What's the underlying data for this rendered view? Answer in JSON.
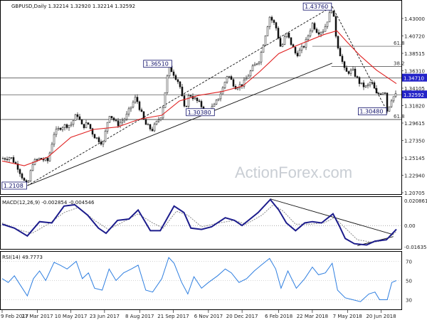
{
  "watermark": "ActionForex.com",
  "price_panel": {
    "title": "GBPUSD,Daily  1.32214 1.32920 1.32214 1.32592"
  },
  "macd_panel": {
    "title": "MACD(12,26,9) -0.002854 -0.004546"
  },
  "rsi_panel": {
    "title": "RSI(14) 49.7773"
  },
  "colors": {
    "ma": "#e02020",
    "macd_main": "#1c1c8c",
    "macd_signal": "#8a8a8a",
    "rsi": "#2f7fe0",
    "callout_fill": "#2323c8",
    "candle": "#111111"
  },
  "chart_data": [
    {
      "type": "candlestick",
      "panel": "price",
      "ylim": [
        1.2,
        1.445
      ],
      "x_start": "2017-02-09",
      "x_end": "2018-07-10",
      "yticks": [
        "1.43000",
        "1.40720",
        "1.38515",
        "1.36310",
        "1.34105",
        "1.31820",
        "1.29615",
        "1.27350",
        "1.25145",
        "1.22940",
        "1.20705"
      ],
      "xticks": [
        {
          "date": "2017-02-09",
          "label": "9 Feb 2017"
        },
        {
          "date": "2017-03-27",
          "label": "27 Mar 2017"
        },
        {
          "date": "2017-05-10",
          "label": "10 May 2017"
        },
        {
          "date": "2017-06-23",
          "label": "23 Jun 2017"
        },
        {
          "date": "2017-08-08",
          "label": "8 Aug 2017"
        },
        {
          "date": "2017-09-21",
          "label": "21 Sep 2017"
        },
        {
          "date": "2017-11-06",
          "label": "6 Nov 2017"
        },
        {
          "date": "2017-12-20",
          "label": "20 Dec 2017"
        },
        {
          "date": "2018-02-06",
          "label": "6 Feb 2018"
        },
        {
          "date": "2018-03-22",
          "label": "22 Mar 2018"
        },
        {
          "date": "2018-05-07",
          "label": "7 May 2018"
        },
        {
          "date": "2018-06-20",
          "label": "20 Jun 2018"
        }
      ],
      "close_path": [
        [
          "2017-02-09",
          1.245
        ],
        [
          "2017-02-20",
          1.247
        ],
        [
          "2017-03-01",
          1.235
        ],
        [
          "2017-03-10",
          1.216
        ],
        [
          "2017-03-14",
          1.21
        ],
        [
          "2017-03-21",
          1.24
        ],
        [
          "2017-03-30",
          1.245
        ],
        [
          "2017-04-10",
          1.242
        ],
        [
          "2017-04-18",
          1.277
        ],
        [
          "2017-04-28",
          1.286
        ],
        [
          "2017-05-10",
          1.288
        ],
        [
          "2017-05-18",
          1.302
        ],
        [
          "2017-05-25",
          1.285
        ],
        [
          "2017-06-01",
          1.29
        ],
        [
          "2017-06-09",
          1.274
        ],
        [
          "2017-06-21",
          1.264
        ],
        [
          "2017-06-29",
          1.302
        ],
        [
          "2017-07-10",
          1.288
        ],
        [
          "2017-07-20",
          1.296
        ],
        [
          "2017-08-03",
          1.323
        ],
        [
          "2017-08-15",
          1.289
        ],
        [
          "2017-08-24",
          1.281
        ],
        [
          "2017-09-06",
          1.301
        ],
        [
          "2017-09-15",
          1.361
        ],
        [
          "2017-09-20",
          1.355
        ],
        [
          "2017-09-29",
          1.34
        ],
        [
          "2017-10-06",
          1.306
        ],
        [
          "2017-10-12",
          1.327
        ],
        [
          "2017-10-24",
          1.316
        ],
        [
          "2017-11-03",
          1.304
        ],
        [
          "2017-11-14",
          1.312
        ],
        [
          "2017-11-24",
          1.332
        ],
        [
          "2017-12-01",
          1.352
        ],
        [
          "2017-12-11",
          1.336
        ],
        [
          "2017-12-21",
          1.339
        ],
        [
          "2018-01-03",
          1.36
        ],
        [
          "2018-01-12",
          1.371
        ],
        [
          "2018-01-25",
          1.425
        ],
        [
          "2018-02-02",
          1.413
        ],
        [
          "2018-02-09",
          1.384
        ],
        [
          "2018-02-16",
          1.404
        ],
        [
          "2018-03-01",
          1.376
        ],
        [
          "2018-03-12",
          1.389
        ],
        [
          "2018-03-22",
          1.416
        ],
        [
          "2018-03-29",
          1.405
        ],
        [
          "2018-04-06",
          1.408
        ],
        [
          "2018-04-17",
          1.437
        ],
        [
          "2018-04-23",
          1.393
        ],
        [
          "2018-05-04",
          1.354
        ],
        [
          "2018-05-14",
          1.356
        ],
        [
          "2018-05-24",
          1.339
        ],
        [
          "2018-06-01",
          1.335
        ],
        [
          "2018-06-07",
          1.343
        ],
        [
          "2018-06-14",
          1.326
        ],
        [
          "2018-06-25",
          1.331
        ],
        [
          "2018-06-28",
          1.305
        ],
        [
          "2018-07-04",
          1.322
        ],
        [
          "2018-07-10",
          1.326
        ]
      ],
      "moving_average": [
        [
          "2017-02-09",
          1.242
        ],
        [
          "2017-03-10",
          1.236
        ],
        [
          "2017-04-10",
          1.247
        ],
        [
          "2017-05-10",
          1.272
        ],
        [
          "2017-06-09",
          1.282
        ],
        [
          "2017-07-10",
          1.285
        ],
        [
          "2017-08-08",
          1.295
        ],
        [
          "2017-09-06",
          1.3
        ],
        [
          "2017-09-29",
          1.318
        ],
        [
          "2017-10-24",
          1.325
        ],
        [
          "2017-11-24",
          1.33
        ],
        [
          "2017-12-21",
          1.337
        ],
        [
          "2018-01-12",
          1.355
        ],
        [
          "2018-02-06",
          1.378
        ],
        [
          "2018-03-01",
          1.388
        ],
        [
          "2018-04-06",
          1.402
        ],
        [
          "2018-04-23",
          1.407
        ],
        [
          "2018-05-07",
          1.392
        ],
        [
          "2018-05-24",
          1.375
        ],
        [
          "2018-06-14",
          1.357
        ],
        [
          "2018-07-10",
          1.34
        ]
      ],
      "horizontal_levels": [
        1.3471,
        1.3259,
        1.2945
      ],
      "fib_levels": [
        {
          "label": "61.8",
          "value": 1.3873,
          "start": "2018-03-22"
        },
        {
          "label": "38.2",
          "value": 1.3616,
          "start": "2018-04-16"
        },
        {
          "label": "61.8",
          "value": 1.2945,
          "start": "2017-02-09"
        }
      ],
      "trend_lines": [
        {
          "from": [
            "2017-03-14",
            1.2108
          ],
          "to": [
            "2018-04-17",
            1.4376
          ],
          "style": "dashed"
        },
        {
          "from": [
            "2017-03-14",
            1.2108
          ],
          "to": [
            "2018-04-17",
            1.3659
          ],
          "style": "solid"
        },
        {
          "from": [
            "2018-04-17",
            1.4376
          ],
          "to": [
            "2018-06-28",
            1.3048
          ],
          "style": "dashed"
        }
      ],
      "callouts": [
        {
          "label": "1.43760",
          "date": "2018-04-17",
          "value": 1.4376,
          "side": "left"
        },
        {
          "label": "1.36510",
          "date": "2017-09-20",
          "value": 1.3651,
          "side": "left"
        },
        {
          "label": "1.30380",
          "date": "2017-10-06",
          "value": 1.3038,
          "side": "right"
        },
        {
          "label": "1.30480",
          "date": "2018-06-28",
          "value": 1.3048,
          "side": "left"
        },
        {
          "label": "1.2108",
          "date": "2017-03-14",
          "value": 1.2108,
          "side": "left"
        },
        {
          "label": "1.34710",
          "date": "2018-07-10",
          "value": 1.3471,
          "side": "axis"
        },
        {
          "label": "1.32592",
          "date": "2018-07-10",
          "value": 1.3259,
          "side": "axis"
        }
      ]
    },
    {
      "type": "line",
      "panel": "macd",
      "ylim": [
        -0.018,
        0.022
      ],
      "yticks": [
        "0.020861",
        "0.00",
        "-0.016357"
      ],
      "series": [
        {
          "name": "MACD",
          "values": [
            [
              "2017-02-09",
              0.001
            ],
            [
              "2017-02-25",
              -0.002
            ],
            [
              "2017-03-14",
              -0.008
            ],
            [
              "2017-03-30",
              0.003
            ],
            [
              "2017-04-15",
              0.002
            ],
            [
              "2017-05-01",
              0.015
            ],
            [
              "2017-05-15",
              0.016
            ],
            [
              "2017-06-01",
              0.008
            ],
            [
              "2017-06-15",
              -0.002
            ],
            [
              "2017-06-25",
              -0.006
            ],
            [
              "2017-07-10",
              0.004
            ],
            [
              "2017-07-25",
              0.005
            ],
            [
              "2017-08-06",
              0.012
            ],
            [
              "2017-08-22",
              -0.004
            ],
            [
              "2017-09-04",
              -0.004
            ],
            [
              "2017-09-22",
              0.015
            ],
            [
              "2017-10-05",
              0.01
            ],
            [
              "2017-10-14",
              -0.002
            ],
            [
              "2017-10-28",
              -0.003
            ],
            [
              "2017-11-10",
              -0.001
            ],
            [
              "2017-11-28",
              0.006
            ],
            [
              "2017-12-10",
              0.004
            ],
            [
              "2017-12-20",
              0.0
            ],
            [
              "2018-01-10",
              0.01
            ],
            [
              "2018-01-26",
              0.02
            ],
            [
              "2018-02-06",
              0.012
            ],
            [
              "2018-02-16",
              0.002
            ],
            [
              "2018-02-28",
              -0.004
            ],
            [
              "2018-03-12",
              0.002
            ],
            [
              "2018-03-22",
              0.003
            ],
            [
              "2018-04-03",
              0.002
            ],
            [
              "2018-04-18",
              0.009
            ],
            [
              "2018-04-26",
              0.0
            ],
            [
              "2018-05-04",
              -0.01
            ],
            [
              "2018-05-16",
              -0.014
            ],
            [
              "2018-06-01",
              -0.015
            ],
            [
              "2018-06-12",
              -0.012
            ],
            [
              "2018-06-27",
              -0.011
            ],
            [
              "2018-07-10",
              -0.0029
            ]
          ]
        },
        {
          "name": "Signal",
          "values": [
            [
              "2017-02-09",
              0.002
            ],
            [
              "2017-03-01",
              -0.003
            ],
            [
              "2017-03-20",
              -0.006
            ],
            [
              "2017-04-10",
              0.001
            ],
            [
              "2017-05-01",
              0.01
            ],
            [
              "2017-05-20",
              0.014
            ],
            [
              "2017-06-10",
              0.004
            ],
            [
              "2017-06-28",
              -0.003
            ],
            [
              "2017-07-15",
              0.002
            ],
            [
              "2017-08-06",
              0.009
            ],
            [
              "2017-08-25",
              0.002
            ],
            [
              "2017-09-08",
              -0.002
            ],
            [
              "2017-09-25",
              0.011
            ],
            [
              "2017-10-10",
              0.008
            ],
            [
              "2017-10-28",
              -0.001
            ],
            [
              "2017-11-20",
              0.002
            ],
            [
              "2017-12-10",
              0.004
            ],
            [
              "2017-12-25",
              0.001
            ],
            [
              "2018-01-15",
              0.008
            ],
            [
              "2018-01-30",
              0.016
            ],
            [
              "2018-02-12",
              0.011
            ],
            [
              "2018-02-28",
              0.001
            ],
            [
              "2018-03-18",
              0.001
            ],
            [
              "2018-04-06",
              0.002
            ],
            [
              "2018-04-20",
              0.006
            ],
            [
              "2018-05-06",
              -0.003
            ],
            [
              "2018-05-20",
              -0.011
            ],
            [
              "2018-06-10",
              -0.013
            ],
            [
              "2018-06-27",
              -0.011
            ],
            [
              "2018-07-10",
              -0.0045
            ]
          ]
        }
      ],
      "trend_lines": [
        {
          "from": [
            "2018-01-26",
            0.0205
          ],
          "to": [
            "2018-07-06",
            -0.007
          ],
          "style": "solid"
        },
        {
          "from": [
            "2018-05-20",
            -0.0155
          ],
          "to": [
            "2018-07-06",
            -0.0085
          ],
          "style": "solid"
        }
      ]
    },
    {
      "type": "line",
      "panel": "rsi",
      "ylim": [
        20,
        80
      ],
      "yticks": [
        "70",
        "50",
        "30"
      ],
      "series": [
        {
          "name": "RSI(14)",
          "values": [
            [
              "2017-02-09",
              52
            ],
            [
              "2017-02-17",
              48
            ],
            [
              "2017-02-25",
              55
            ],
            [
              "2017-03-05",
              45
            ],
            [
              "2017-03-14",
              34
            ],
            [
              "2017-03-22",
              52
            ],
            [
              "2017-03-30",
              60
            ],
            [
              "2017-04-07",
              50
            ],
            [
              "2017-04-18",
              69
            ],
            [
              "2017-04-26",
              66
            ],
            [
              "2017-05-05",
              62
            ],
            [
              "2017-05-17",
              70
            ],
            [
              "2017-05-25",
              52
            ],
            [
              "2017-06-02",
              58
            ],
            [
              "2017-06-10",
              42
            ],
            [
              "2017-06-20",
              40
            ],
            [
              "2017-06-29",
              62
            ],
            [
              "2017-07-08",
              50
            ],
            [
              "2017-07-18",
              58
            ],
            [
              "2017-07-28",
              62
            ],
            [
              "2017-08-06",
              66
            ],
            [
              "2017-08-16",
              40
            ],
            [
              "2017-08-25",
              38
            ],
            [
              "2017-09-06",
              52
            ],
            [
              "2017-09-15",
              74
            ],
            [
              "2017-09-22",
              68
            ],
            [
              "2017-10-02",
              48
            ],
            [
              "2017-10-10",
              36
            ],
            [
              "2017-10-18",
              54
            ],
            [
              "2017-10-28",
              42
            ],
            [
              "2017-11-06",
              48
            ],
            [
              "2017-11-18",
              55
            ],
            [
              "2017-11-28",
              62
            ],
            [
              "2017-12-06",
              58
            ],
            [
              "2017-12-16",
              48
            ],
            [
              "2017-12-26",
              52
            ],
            [
              "2018-01-05",
              60
            ],
            [
              "2018-01-14",
              66
            ],
            [
              "2018-01-25",
              73
            ],
            [
              "2018-02-02",
              62
            ],
            [
              "2018-02-09",
              42
            ],
            [
              "2018-02-18",
              60
            ],
            [
              "2018-03-01",
              42
            ],
            [
              "2018-03-12",
              52
            ],
            [
              "2018-03-22",
              64
            ],
            [
              "2018-03-30",
              56
            ],
            [
              "2018-04-08",
              58
            ],
            [
              "2018-04-17",
              68
            ],
            [
              "2018-04-24",
              40
            ],
            [
              "2018-05-04",
              32
            ],
            [
              "2018-05-14",
              30
            ],
            [
              "2018-05-24",
              28
            ],
            [
              "2018-06-04",
              36
            ],
            [
              "2018-06-12",
              38
            ],
            [
              "2018-06-18",
              30
            ],
            [
              "2018-06-28",
              30
            ],
            [
              "2018-07-04",
              48
            ],
            [
              "2018-07-10",
              50
            ]
          ]
        }
      ]
    }
  ]
}
